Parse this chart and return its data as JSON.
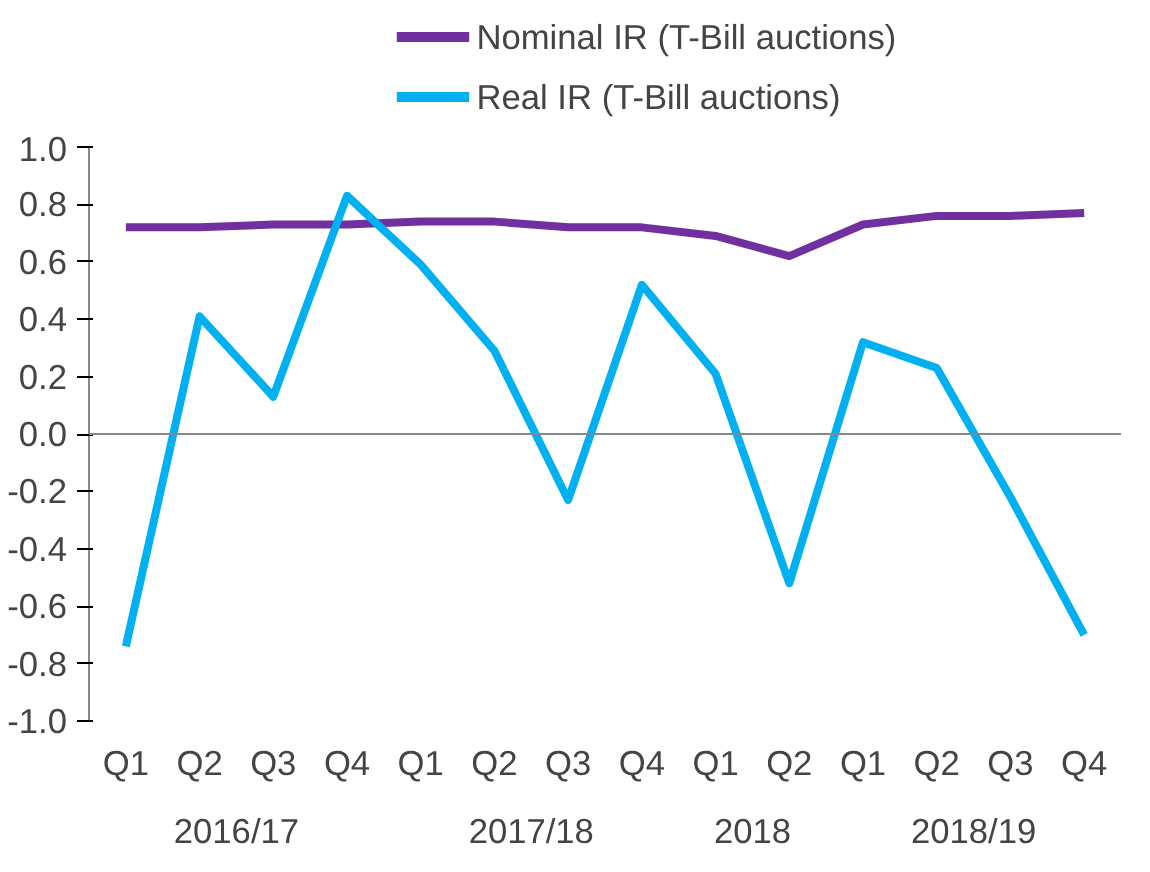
{
  "chart_data": {
    "type": "line",
    "categories": [
      "Q1",
      "Q2",
      "Q3",
      "Q4",
      "Q1",
      "Q2",
      "Q3",
      "Q4",
      "Q1",
      "Q2",
      "Q1",
      "Q2",
      "Q3",
      "Q4"
    ],
    "series": [
      {
        "name": "Nominal IR (T-Bill auctions)",
        "color": "#7030a0",
        "values": [
          0.72,
          0.72,
          0.73,
          0.73,
          0.74,
          0.74,
          0.72,
          0.72,
          0.69,
          0.62,
          0.73,
          0.76,
          0.76,
          0.77
        ]
      },
      {
        "name": "Real IR (T-Bill auctions)",
        "color": "#00b0f0",
        "values": [
          -0.74,
          0.41,
          0.13,
          0.83,
          0.59,
          0.29,
          -0.23,
          0.52,
          0.21,
          -0.52,
          0.32,
          0.23,
          -0.22,
          -0.7
        ]
      }
    ],
    "annotations": [
      "2016/17",
      "2017/18",
      "2018",
      "2018/19"
    ],
    "ylim": [
      -1,
      1
    ],
    "yticks": [
      {
        "value": -1,
        "label": "-1.0"
      },
      {
        "value": -0.8,
        "label": "-0.8"
      },
      {
        "value": -0.6,
        "label": "-0.6"
      },
      {
        "value": -0.4,
        "label": "-0.4"
      },
      {
        "value": -0.2,
        "label": "-0.2"
      },
      {
        "value": 0,
        "label": "0.0"
      },
      {
        "value": 0.2,
        "label": "0.2"
      },
      {
        "value": 0.4,
        "label": "0.4"
      },
      {
        "value": 0.6,
        "label": "0.6"
      },
      {
        "value": 0.8,
        "label": "0.8"
      },
      {
        "value": 1,
        "label": "1.0"
      }
    ],
    "ref_lines": [
      {
        "axis": "y",
        "value": 0,
        "color": "#888888",
        "line_style": "solid"
      }
    ],
    "grid": false,
    "legend": "top",
    "marker": "none",
    "line_style": "solid"
  }
}
